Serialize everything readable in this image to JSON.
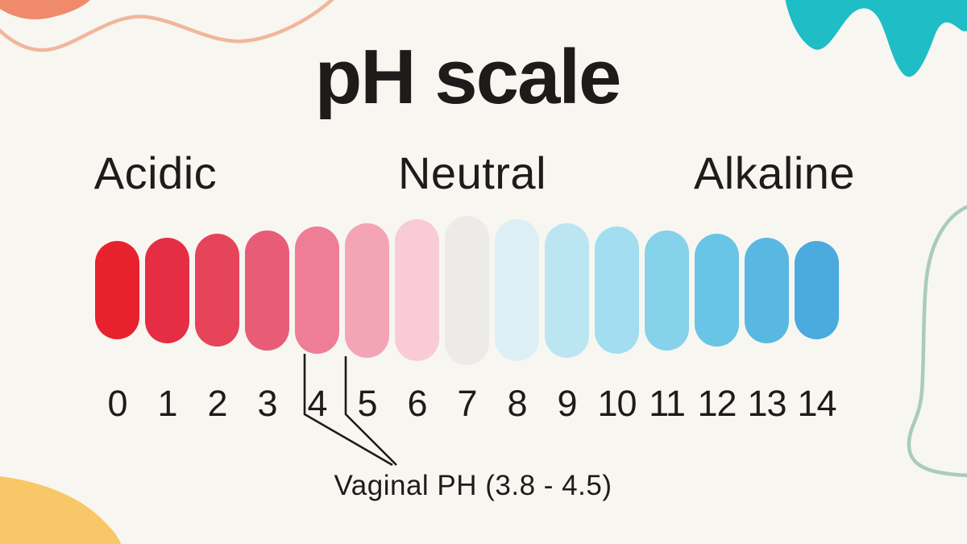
{
  "background_color": "#F8F6F1",
  "ink_color": "#1D1C1A",
  "title": "pH scale",
  "section_labels": {
    "left": "Acidic",
    "middle": "Neutral",
    "right": "Alkaline"
  },
  "annotation": {
    "label": "Vaginal PH (3.8 - 4.5)",
    "points_to_values": [
      4,
      4.5
    ]
  },
  "chart_data": {
    "type": "scale",
    "title": "pH scale",
    "categories": [
      "0",
      "1",
      "2",
      "3",
      "4",
      "5",
      "6",
      "7",
      "8",
      "9",
      "10",
      "11",
      "12",
      "13",
      "14"
    ],
    "region_labels": [
      {
        "label": "Acidic",
        "side": "low pH"
      },
      {
        "label": "Neutral",
        "side": "pH 7"
      },
      {
        "label": "Alkaline",
        "side": "high pH"
      }
    ],
    "pills": [
      {
        "value": "0",
        "color": "#E8212F"
      },
      {
        "value": "1",
        "color": "#E52E44"
      },
      {
        "value": "2",
        "color": "#E64459"
      },
      {
        "value": "3",
        "color": "#E95C77"
      },
      {
        "value": "4",
        "color": "#EE7E96"
      },
      {
        "value": "5",
        "color": "#F3A5B6"
      },
      {
        "value": "6",
        "color": "#F8CBD6"
      },
      {
        "value": "7",
        "color": "#EDEBE9"
      },
      {
        "value": "8",
        "color": "#DCEFF4"
      },
      {
        "value": "9",
        "color": "#BCE5F2"
      },
      {
        "value": "10",
        "color": "#A2DEEF"
      },
      {
        "value": "11",
        "color": "#85D2EA"
      },
      {
        "value": "12",
        "color": "#69C5E6"
      },
      {
        "value": "13",
        "color": "#59B8E2"
      },
      {
        "value": "14",
        "color": "#4BAADE"
      }
    ],
    "annotation": {
      "label": "Vaginal PH (3.8 - 4.5)",
      "range": [
        3.8,
        4.5
      ]
    }
  },
  "decorations": {
    "salmon_blob": "#EF8A6B",
    "peach_wave_line": "#F1B69C",
    "teal_blob": "#1FBDC6",
    "sage_outline_blob": "#A9CBBE",
    "yellow_blob": "#F8C868",
    "callout_line": "#1D1C1A"
  }
}
